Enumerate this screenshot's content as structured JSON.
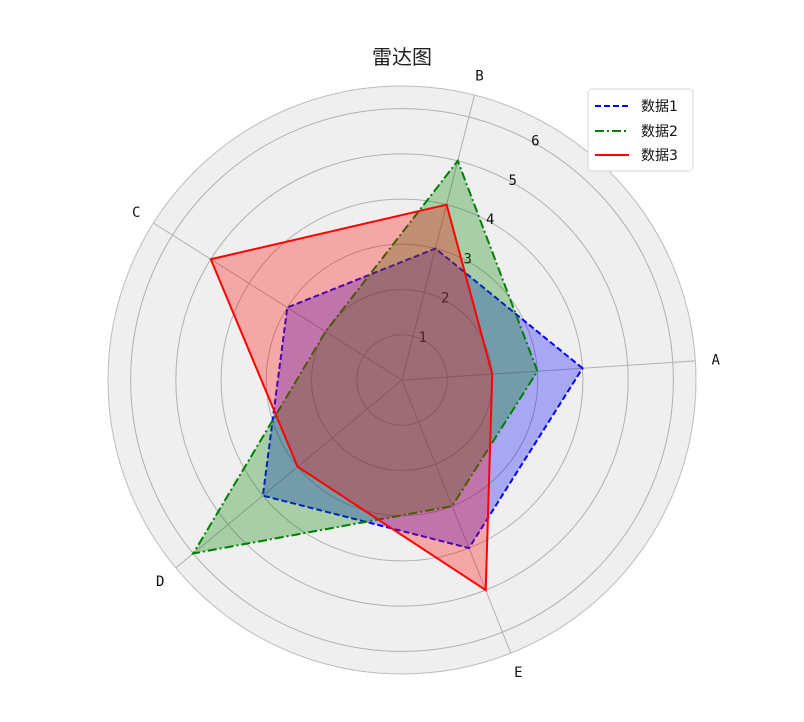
{
  "chart_data": {
    "type": "radar",
    "title": "雷达图",
    "categories": [
      "A",
      "B",
      "C",
      "D",
      "E"
    ],
    "rlim": [
      0,
      6.5
    ],
    "rticks": [
      1,
      2,
      3,
      4,
      5,
      6
    ],
    "grid": true,
    "legend_position": "top-right",
    "series": [
      {
        "name": "数据1",
        "values": [
          4,
          3,
          3,
          4,
          4
        ],
        "color": "#0000ff",
        "linestyle": "dashed"
      },
      {
        "name": "数据2",
        "values": [
          3,
          5,
          2,
          6,
          3
        ],
        "color": "#008000",
        "linestyle": "dashdot"
      },
      {
        "name": "数据3",
        "values": [
          2,
          4,
          5,
          3,
          5
        ],
        "color": "#ff0000",
        "linestyle": "solid"
      }
    ]
  }
}
